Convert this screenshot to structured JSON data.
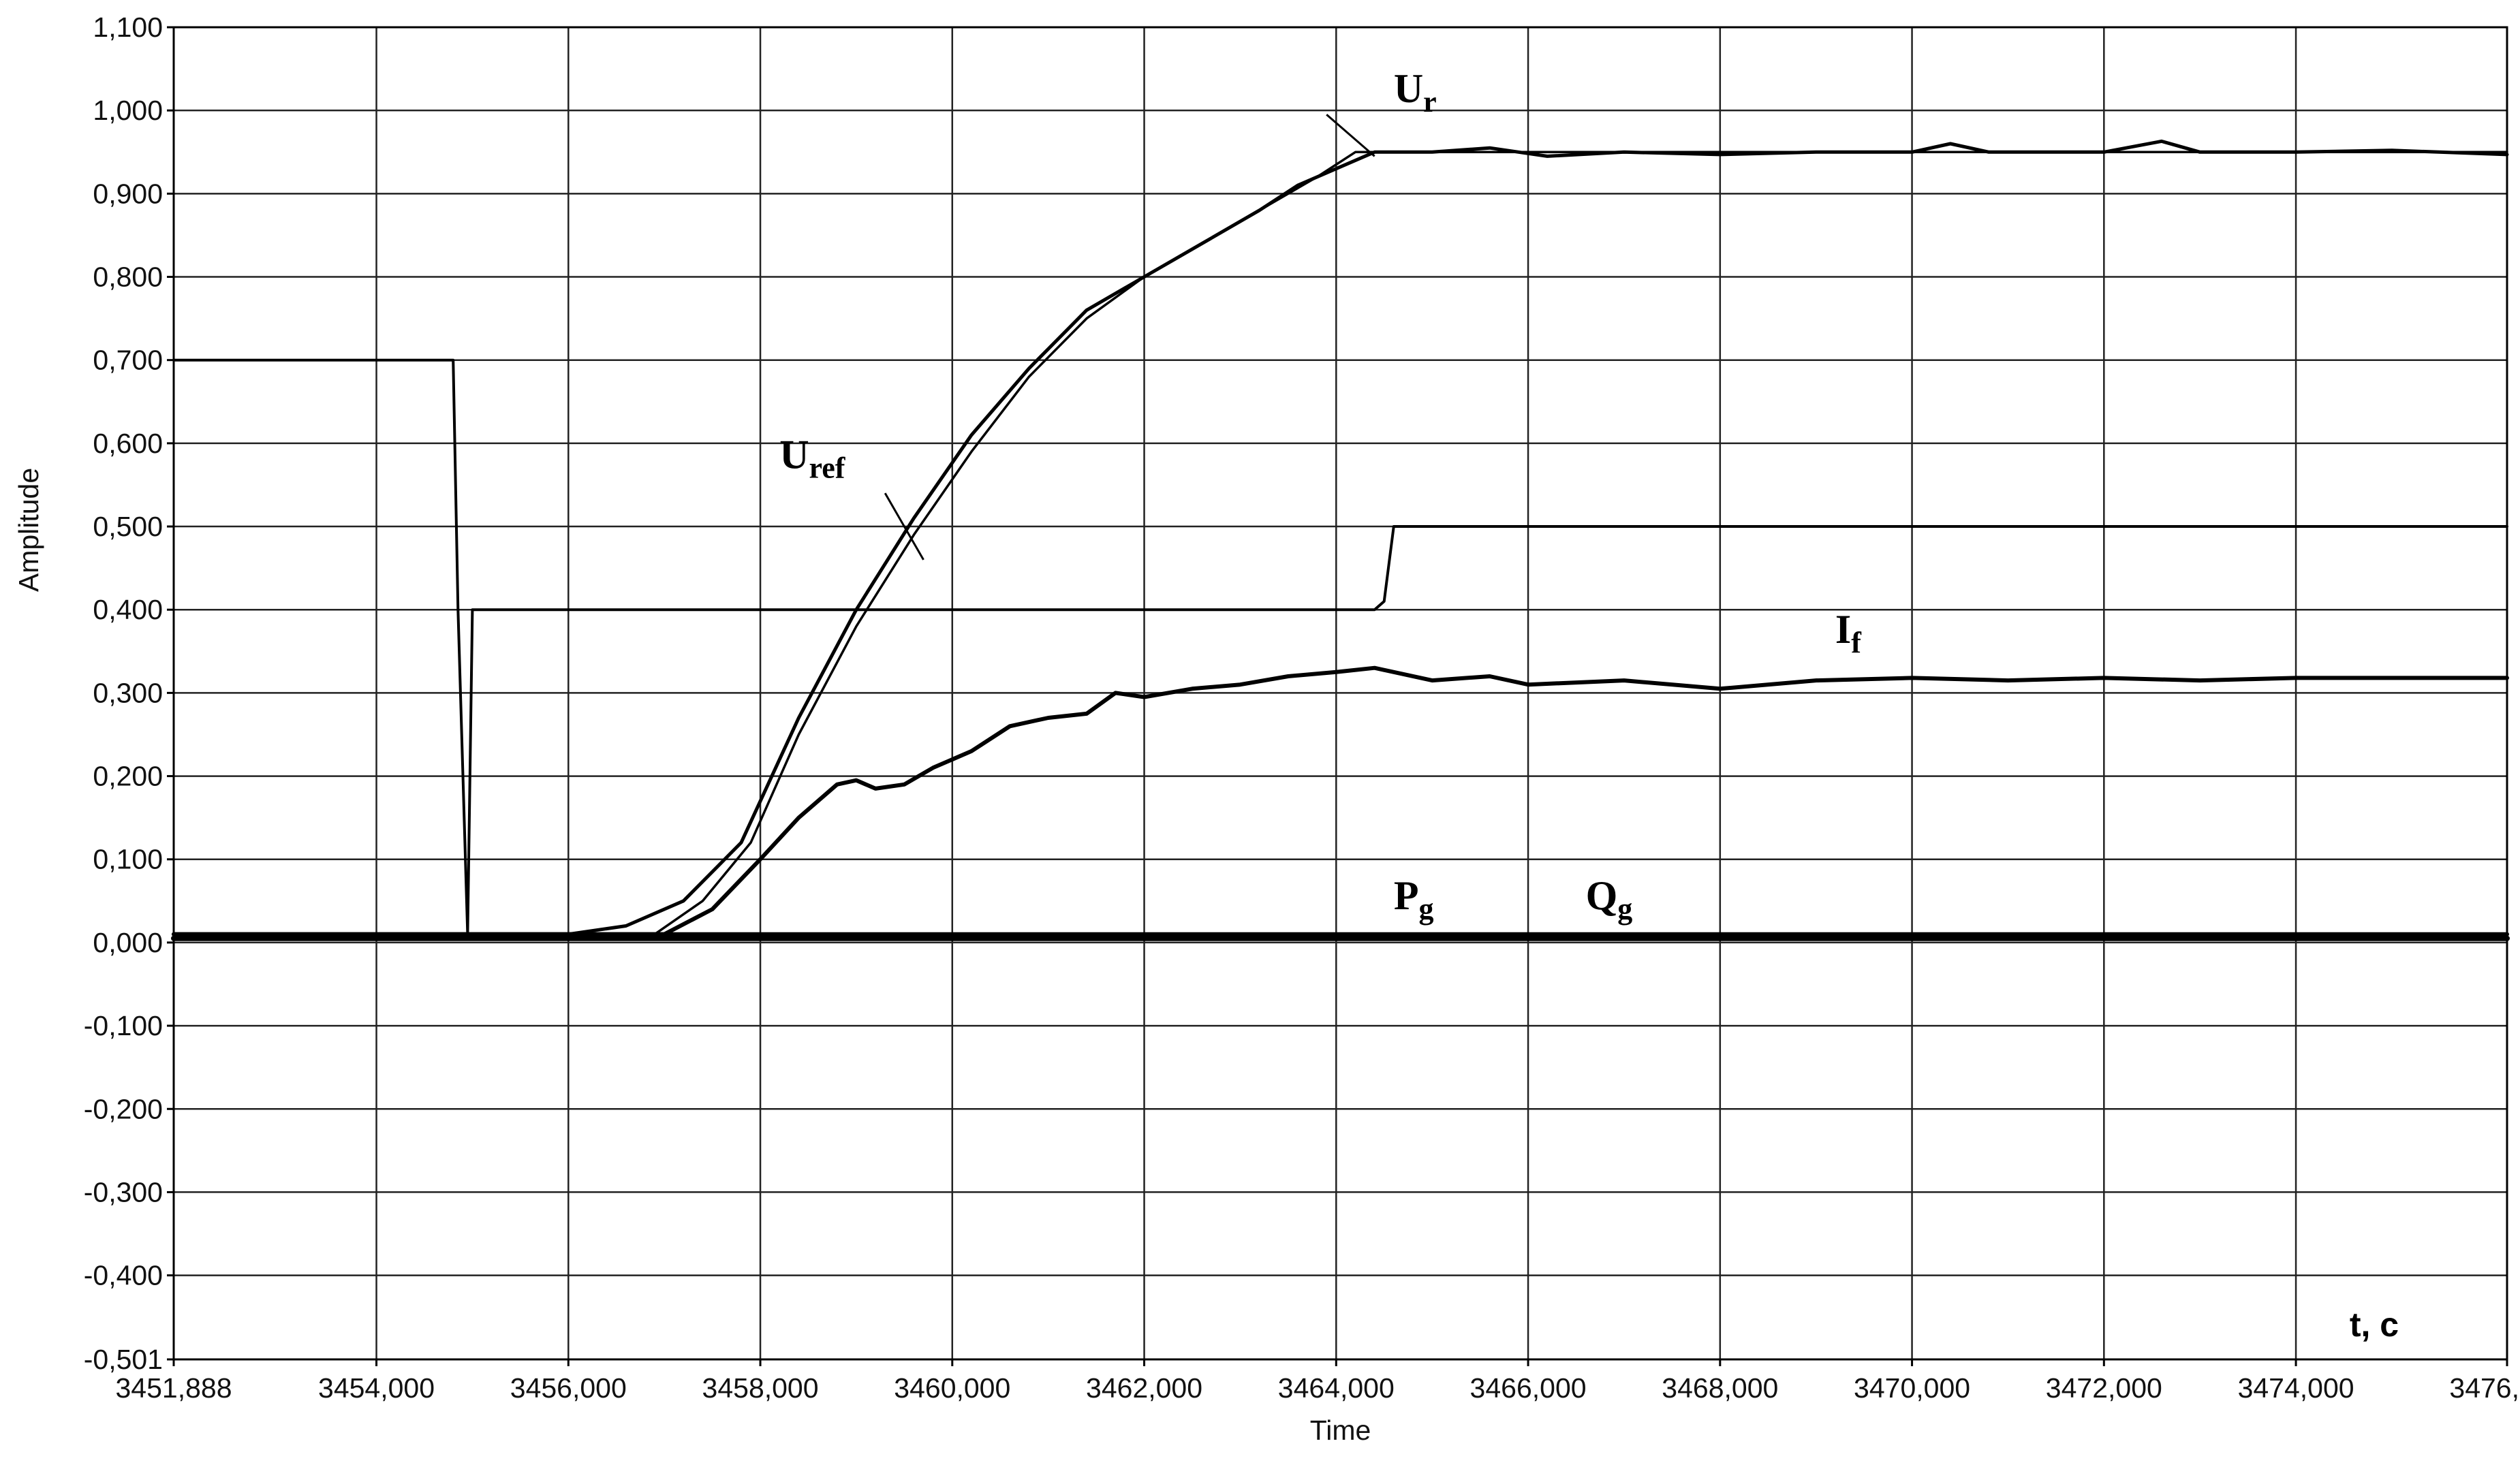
{
  "chart_data": {
    "type": "line",
    "xlabel": "Time",
    "ylabel": "Amplitude",
    "unit_label": "t, c",
    "xlim": [
      3451.888,
      3476.2
    ],
    "ylim": [
      -0.501,
      1.1
    ],
    "y_ticks": [
      {
        "value": 1.1,
        "label": "1,100"
      },
      {
        "value": 1.0,
        "label": "1,000"
      },
      {
        "value": 0.9,
        "label": "0,900"
      },
      {
        "value": 0.8,
        "label": "0,800"
      },
      {
        "value": 0.7,
        "label": "0,700"
      },
      {
        "value": 0.6,
        "label": "0,600"
      },
      {
        "value": 0.5,
        "label": "0,500"
      },
      {
        "value": 0.4,
        "label": "0,400"
      },
      {
        "value": 0.3,
        "label": "0,300"
      },
      {
        "value": 0.2,
        "label": "0,200"
      },
      {
        "value": 0.1,
        "label": "0,100"
      },
      {
        "value": 0.0,
        "label": "0,000"
      },
      {
        "value": -0.1,
        "label": "-0,100"
      },
      {
        "value": -0.2,
        "label": "-0,200"
      },
      {
        "value": -0.3,
        "label": "-0,300"
      },
      {
        "value": -0.4,
        "label": "-0,400"
      },
      {
        "value": -0.501,
        "label": "-0,501"
      }
    ],
    "x_ticks": [
      {
        "value": 3451.888,
        "label": "3451,888"
      },
      {
        "value": 3454.0,
        "label": "3454,000"
      },
      {
        "value": 3456.0,
        "label": "3456,000"
      },
      {
        "value": 3458.0,
        "label": "3458,000"
      },
      {
        "value": 3460.0,
        "label": "3460,000"
      },
      {
        "value": 3462.0,
        "label": "3462,000"
      },
      {
        "value": 3464.0,
        "label": "3464,000"
      },
      {
        "value": 3466.0,
        "label": "3466,000"
      },
      {
        "value": 3468.0,
        "label": "3468,000"
      },
      {
        "value": 3470.0,
        "label": "3470,000"
      },
      {
        "value": 3472.0,
        "label": "3472,000"
      },
      {
        "value": 3474.0,
        "label": "3474,000"
      },
      {
        "value": 3476.2,
        "label": "3476,"
      }
    ],
    "grid": true,
    "series": [
      {
        "name": "Ur",
        "x": [
          3451.888,
          3456.0,
          3456.6,
          3457.2,
          3457.8,
          3458.4,
          3459.0,
          3459.6,
          3460.2,
          3460.8,
          3461.4,
          3462.0,
          3462.6,
          3463.2,
          3463.6,
          3464.0,
          3464.4,
          3465.0,
          3465.6,
          3465.9,
          3466.2,
          3467.0,
          3468.0,
          3469.0,
          3470.0,
          3470.4,
          3470.8,
          3472.0,
          3472.6,
          3473.0,
          3474.0,
          3475.0,
          3476.2
        ],
        "y": [
          0.01,
          0.01,
          0.02,
          0.05,
          0.12,
          0.27,
          0.4,
          0.51,
          0.61,
          0.69,
          0.76,
          0.8,
          0.84,
          0.88,
          0.91,
          0.93,
          0.95,
          0.95,
          0.955,
          0.95,
          0.945,
          0.95,
          0.947,
          0.95,
          0.95,
          0.96,
          0.95,
          0.95,
          0.963,
          0.95,
          0.95,
          0.952,
          0.947
        ]
      },
      {
        "name": "Uref",
        "x": [
          3451.888,
          3456.9,
          3457.4,
          3457.9,
          3458.4,
          3459.0,
          3459.6,
          3460.2,
          3460.8,
          3461.4,
          3462.0,
          3462.6,
          3463.2,
          3463.8,
          3464.2,
          3476.2
        ],
        "y": [
          0.01,
          0.01,
          0.05,
          0.12,
          0.25,
          0.38,
          0.49,
          0.59,
          0.68,
          0.75,
          0.8,
          0.84,
          0.88,
          0.92,
          0.95,
          0.95
        ]
      },
      {
        "name": "If",
        "x": [
          3451.888,
          3457.0,
          3457.5,
          3458.0,
          3458.4,
          3458.8,
          3459.0,
          3459.2,
          3459.5,
          3459.8,
          3460.2,
          3460.6,
          3461.0,
          3461.4,
          3461.7,
          3462.0,
          3462.5,
          3463.0,
          3463.5,
          3464.0,
          3464.4,
          3465.0,
          3465.6,
          3466.0,
          3467.0,
          3468.0,
          3469.0,
          3470.0,
          3471.0,
          3472.0,
          3473.0,
          3474.0,
          3475.0,
          3476.2
        ],
        "y": [
          0.01,
          0.01,
          0.04,
          0.1,
          0.15,
          0.19,
          0.195,
          0.185,
          0.19,
          0.21,
          0.23,
          0.26,
          0.27,
          0.275,
          0.3,
          0.295,
          0.305,
          0.31,
          0.32,
          0.325,
          0.33,
          0.315,
          0.32,
          0.31,
          0.315,
          0.305,
          0.315,
          0.318,
          0.315,
          0.318,
          0.315,
          0.318,
          0.318,
          0.318
        ]
      },
      {
        "name": "",
        "x": [
          3451.888,
          3454.8,
          3454.85,
          3454.95,
          3455.0,
          3464.4,
          3464.5,
          3464.6,
          3476.2
        ],
        "y": [
          0.7,
          0.7,
          0.4,
          0.01,
          0.4,
          0.4,
          0.41,
          0.5,
          0.5
        ]
      },
      {
        "name": "Pg",
        "x": [
          3451.888,
          3476.2
        ],
        "y": [
          0.005,
          0.005
        ]
      },
      {
        "name": "Qg",
        "x": [
          3451.888,
          3476.2
        ],
        "y": [
          0.01,
          0.01
        ]
      }
    ],
    "annotations": [
      {
        "main": "U",
        "sub": "r",
        "x": 3464.6,
        "y": 1.01
      },
      {
        "main": "U",
        "sub": "ref",
        "x": 3458.2,
        "y": 0.57
      },
      {
        "main": "I",
        "sub": "f",
        "x": 3469.2,
        "y": 0.36
      },
      {
        "main": "P",
        "sub": "g",
        "x": 3464.6,
        "y": 0.04
      },
      {
        "main": "Q",
        "sub": "g",
        "x": 3466.6,
        "y": 0.04
      }
    ]
  }
}
